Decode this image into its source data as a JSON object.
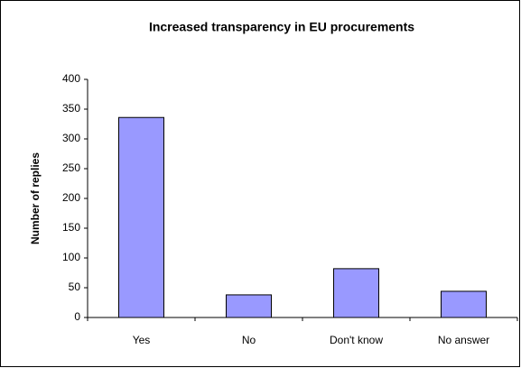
{
  "chart_data": {
    "type": "bar",
    "title": "Increased transparency in EU procurements",
    "y_label": "Number of replies",
    "categories": [
      "Yes",
      "No",
      "Don't know",
      "No answer"
    ],
    "values": [
      336,
      38,
      82,
      44
    ],
    "color": "#9999ff",
    "ylim": [
      0,
      400
    ],
    "yticks": [
      0,
      50,
      100,
      150,
      200,
      250,
      300,
      350,
      400
    ],
    "grid": false
  }
}
